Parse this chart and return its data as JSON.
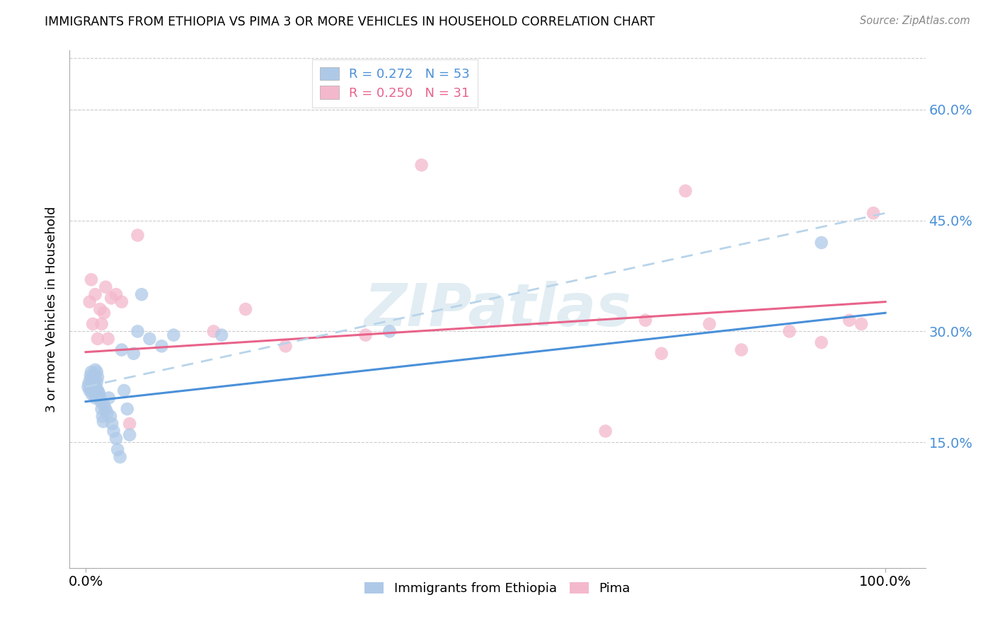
{
  "title": "IMMIGRANTS FROM ETHIOPIA VS PIMA 3 OR MORE VEHICLES IN HOUSEHOLD CORRELATION CHART",
  "source": "Source: ZipAtlas.com",
  "ylabel": "3 or more Vehicles in Household",
  "legend_label1": "Immigrants from Ethiopia",
  "legend_label2": "Pima",
  "r1": 0.272,
  "n1": 53,
  "r2": 0.25,
  "n2": 31,
  "xlim": [
    -0.02,
    1.05
  ],
  "ylim": [
    -0.02,
    0.68
  ],
  "xticks": [
    0.0,
    1.0
  ],
  "xtick_labels": [
    "0.0%",
    "100.0%"
  ],
  "yticks": [
    0.15,
    0.3,
    0.45,
    0.6
  ],
  "ytick_labels": [
    "15.0%",
    "30.0%",
    "45.0%",
    "60.0%"
  ],
  "color_blue": "#aec9e8",
  "color_pink": "#f4b8cc",
  "line_blue": "#4a90d9",
  "line_pink": "#e8638a",
  "line_dashed": "#b8d4ea",
  "background": "#ffffff",
  "watermark": "ZIPatlas",
  "blue_x": [
    0.003,
    0.004,
    0.005,
    0.006,
    0.006,
    0.007,
    0.007,
    0.008,
    0.008,
    0.009,
    0.009,
    0.01,
    0.01,
    0.011,
    0.011,
    0.012,
    0.012,
    0.013,
    0.013,
    0.014,
    0.014,
    0.015,
    0.015,
    0.016,
    0.017,
    0.018,
    0.019,
    0.02,
    0.021,
    0.022,
    0.023,
    0.025,
    0.027,
    0.029,
    0.031,
    0.033,
    0.035,
    0.038,
    0.04,
    0.043,
    0.045,
    0.048,
    0.052,
    0.055,
    0.06,
    0.065,
    0.07,
    0.08,
    0.095,
    0.11,
    0.17,
    0.38,
    0.92
  ],
  "blue_y": [
    0.225,
    0.23,
    0.22,
    0.235,
    0.24,
    0.222,
    0.245,
    0.23,
    0.215,
    0.238,
    0.225,
    0.24,
    0.228,
    0.235,
    0.222,
    0.21,
    0.248,
    0.225,
    0.215,
    0.232,
    0.245,
    0.22,
    0.238,
    0.218,
    0.215,
    0.21,
    0.205,
    0.195,
    0.185,
    0.178,
    0.2,
    0.195,
    0.19,
    0.21,
    0.185,
    0.175,
    0.165,
    0.155,
    0.14,
    0.13,
    0.275,
    0.22,
    0.195,
    0.16,
    0.27,
    0.3,
    0.35,
    0.29,
    0.28,
    0.295,
    0.295,
    0.3,
    0.42
  ],
  "pink_x": [
    0.005,
    0.007,
    0.009,
    0.012,
    0.015,
    0.018,
    0.02,
    0.023,
    0.025,
    0.028,
    0.032,
    0.038,
    0.045,
    0.055,
    0.065,
    0.16,
    0.2,
    0.25,
    0.35,
    0.42,
    0.65,
    0.7,
    0.72,
    0.75,
    0.78,
    0.82,
    0.88,
    0.92,
    0.955,
    0.97,
    0.985
  ],
  "pink_y": [
    0.34,
    0.37,
    0.31,
    0.35,
    0.29,
    0.33,
    0.31,
    0.325,
    0.36,
    0.29,
    0.345,
    0.35,
    0.34,
    0.175,
    0.43,
    0.3,
    0.33,
    0.28,
    0.295,
    0.525,
    0.165,
    0.315,
    0.27,
    0.49,
    0.31,
    0.275,
    0.3,
    0.285,
    0.315,
    0.31,
    0.46
  ],
  "solid_blue_line": [
    0.0,
    0.205,
    1.0,
    0.325
  ],
  "solid_pink_line": [
    0.0,
    0.272,
    1.0,
    0.34
  ],
  "dashed_blue_line": [
    0.0,
    0.225,
    1.0,
    0.46
  ]
}
